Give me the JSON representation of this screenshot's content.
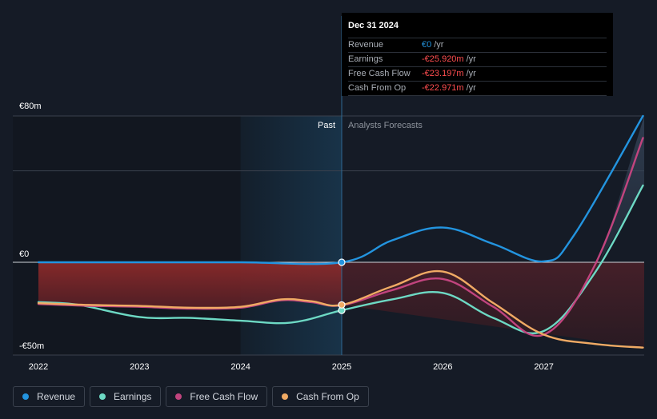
{
  "colors": {
    "revenue": "#2394df",
    "earnings": "#6dd9c4",
    "free_cash_flow": "#c1447e",
    "cash_from_op": "#f0aa64",
    "background": "#151b26",
    "gridline": "#3a414d",
    "zero_line": "#d0d4da"
  },
  "tooltip": {
    "date": "Dec 31 2024",
    "rows": [
      {
        "label": "Revenue",
        "value": "€0",
        "unit": "/yr",
        "color": "#2394df"
      },
      {
        "label": "Earnings",
        "value": "-€25.920m",
        "unit": "/yr",
        "color": "#ff4d4f"
      },
      {
        "label": "Free Cash Flow",
        "value": "-€23.197m",
        "unit": "/yr",
        "color": "#ff4d4f"
      },
      {
        "label": "Cash From Op",
        "value": "-€22.971m",
        "unit": "/yr",
        "color": "#ff4d4f"
      }
    ]
  },
  "regions": {
    "past_label": "Past",
    "forecast_label": "Analysts Forecasts"
  },
  "legend": [
    {
      "label": "Revenue",
      "color": "#2394df"
    },
    {
      "label": "Earnings",
      "color": "#6dd9c4"
    },
    {
      "label": "Free Cash Flow",
      "color": "#c1447e"
    },
    {
      "label": "Cash From Op",
      "color": "#f0aa64"
    }
  ],
  "chart_data": {
    "type": "line",
    "x_ticks": [
      "2022",
      "2023",
      "2024",
      "2025",
      "2026",
      "2027"
    ],
    "y_ticks": [
      {
        "value": 80,
        "label": "€80m"
      },
      {
        "value": 0,
        "label": "€0"
      },
      {
        "value": -50,
        "label": "-€50m"
      }
    ],
    "ylim": [
      -50,
      80
    ],
    "xlim": [
      2021.75,
      2027.98
    ],
    "divider_x": 2025.0,
    "highlight_start_x": 2024.0,
    "series": [
      {
        "name": "Revenue",
        "key": "revenue",
        "points": [
          [
            2022.0,
            0
          ],
          [
            2023.0,
            0
          ],
          [
            2024.0,
            0
          ],
          [
            2025.0,
            0
          ],
          [
            2025.5,
            12
          ],
          [
            2026.0,
            19
          ],
          [
            2026.5,
            10
          ],
          [
            2027.0,
            0.5
          ],
          [
            2027.3,
            15
          ],
          [
            2027.98,
            80
          ]
        ]
      },
      {
        "name": "Earnings",
        "key": "earnings",
        "points": [
          [
            2022.0,
            -21.5
          ],
          [
            2022.4,
            -23
          ],
          [
            2023.0,
            -29.5
          ],
          [
            2023.5,
            -30
          ],
          [
            2024.0,
            -31.5
          ],
          [
            2024.5,
            -32.5
          ],
          [
            2025.0,
            -25.9
          ],
          [
            2025.5,
            -20
          ],
          [
            2026.0,
            -16.5
          ],
          [
            2026.5,
            -30
          ],
          [
            2027.0,
            -37
          ],
          [
            2027.5,
            -6
          ],
          [
            2027.98,
            42
          ]
        ]
      },
      {
        "name": "Free Cash Flow",
        "key": "free_cash_flow",
        "points": [
          [
            2022.0,
            -22.5
          ],
          [
            2022.5,
            -23.5
          ],
          [
            2023.0,
            -24
          ],
          [
            2023.5,
            -25
          ],
          [
            2024.0,
            -24.5
          ],
          [
            2024.4,
            -20.5
          ],
          [
            2024.7,
            -21.5
          ],
          [
            2025.0,
            -23.197
          ],
          [
            2025.5,
            -15
          ],
          [
            2026.0,
            -9
          ],
          [
            2026.5,
            -24
          ],
          [
            2027.0,
            -39
          ],
          [
            2027.5,
            -2
          ],
          [
            2027.98,
            68
          ]
        ]
      },
      {
        "name": "Cash From Op",
        "key": "cash_from_op",
        "points": [
          [
            2022.0,
            -22
          ],
          [
            2022.5,
            -23
          ],
          [
            2023.0,
            -23.5
          ],
          [
            2023.5,
            -24.5
          ],
          [
            2024.0,
            -24
          ],
          [
            2024.4,
            -20
          ],
          [
            2024.7,
            -21
          ],
          [
            2025.0,
            -22.971
          ],
          [
            2025.5,
            -13
          ],
          [
            2026.0,
            -5
          ],
          [
            2026.5,
            -22
          ],
          [
            2027.0,
            -39
          ],
          [
            2027.5,
            -44
          ],
          [
            2027.98,
            -46
          ]
        ]
      }
    ]
  }
}
